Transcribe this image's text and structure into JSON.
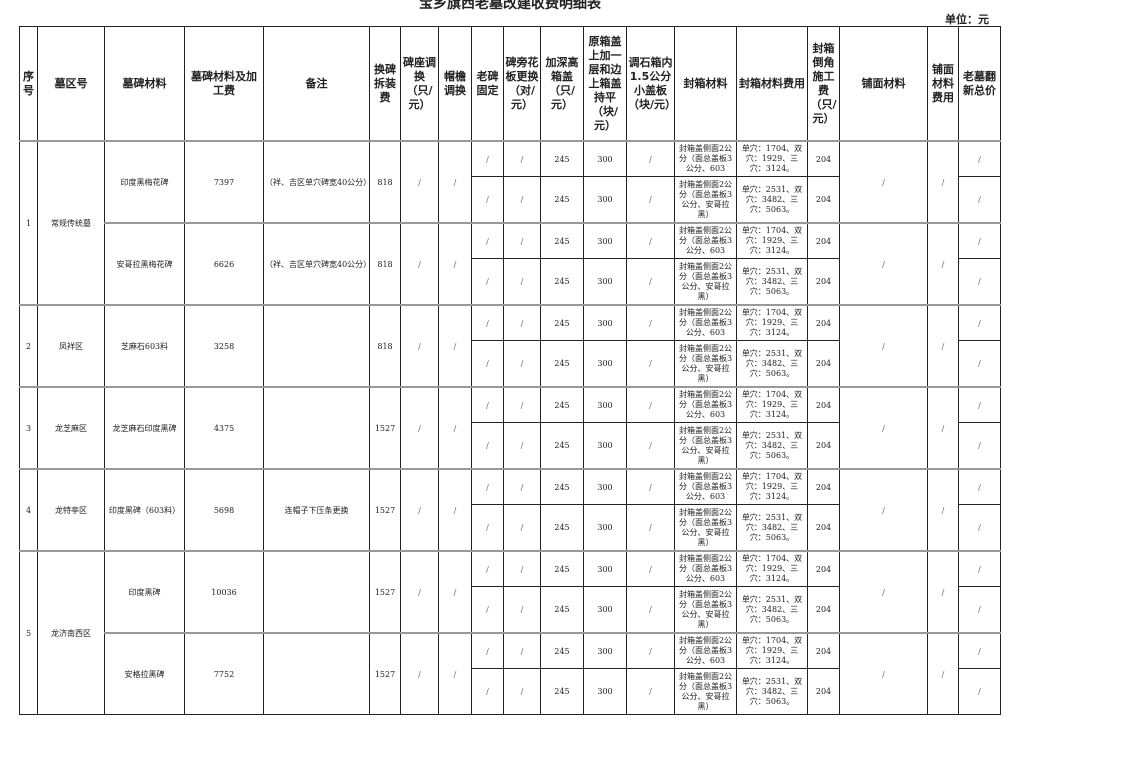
{
  "title": "宝乡旗西老墓改建收费明细表",
  "unit": "单位：元",
  "headers": [
    "序号",
    "墓区号",
    "墓碑材料",
    "墓碑材料及加工费",
    "备注",
    "换碑拆装费",
    "碑座调换（只/元）",
    "帽檐调换",
    "老碑固定",
    "碑旁花板更换（对/元）",
    "加深高箱盖（只/元）",
    "原箱盖上加一层和边上箱盖持平（块/元）",
    "调石箱内1.5公分小盖板（块/元）",
    "封箱材料",
    "封箱材料费用",
    "封箱倒角施工费（只/元）",
    "铺面材料",
    "铺面材料费用",
    "老墓翻新总价"
  ],
  "slash": "/",
  "sub_rows": [
    {
      "old_fix": "/",
      "side_panel": "/",
      "deep_lid": "245",
      "extra_lid": "300",
      "small_lid": "/",
      "seal_material": "封箱盖侧面2公分（面总盖板3公分、603",
      "seal_cost": "单穴：1704、双穴：1929、三穴：3124。",
      "chamfer": "204",
      "total": "/"
    },
    {
      "old_fix": "/",
      "side_panel": "/",
      "deep_lid": "245",
      "extra_lid": "300",
      "small_lid": "/",
      "seal_material": "封箱盖侧面2公分（面总盖板3公分、安哥拉黑）",
      "seal_cost": "单穴：2531、双穴：3482、三穴：5063。",
      "chamfer": "204",
      "total": "/"
    }
  ],
  "zones": [
    {
      "seq": "1",
      "zone": "常规传统墓",
      "items": [
        {
          "material": "印度黑梅花碑",
          "fee": "7397",
          "note": "（祥、吉区单穴碑宽40公分）",
          "replace_fee": "818",
          "base": "/",
          "brim": "/",
          "paving_material": "/",
          "paving_cost": "/"
        },
        {
          "material": "安哥拉黑梅花碑",
          "fee": "6626",
          "note": "（祥、吉区单穴碑宽40公分）",
          "replace_fee": "818",
          "base": "/",
          "brim": "/",
          "paving_material": "/",
          "paving_cost": "/"
        }
      ]
    },
    {
      "seq": "2",
      "zone": "凤祥区",
      "items": [
        {
          "material": "芝麻石603料",
          "fee": "3258",
          "note": "",
          "replace_fee": "818",
          "base": "/",
          "brim": "/",
          "paving_material": "/",
          "paving_cost": "/"
        }
      ]
    },
    {
      "seq": "3",
      "zone": "龙芝麻区",
      "items": [
        {
          "material": "龙芝麻石印度黑碑",
          "fee": "4375",
          "note": "",
          "replace_fee": "1527",
          "base": "/",
          "brim": "/",
          "paving_material": "/",
          "paving_cost": "/"
        }
      ]
    },
    {
      "seq": "4",
      "zone": "龙特亭区",
      "items": [
        {
          "material": "印度黑碑（603料）",
          "fee": "5698",
          "note": "连帽子下压条更换",
          "replace_fee": "1527",
          "base": "/",
          "brim": "/",
          "paving_material": "/",
          "paving_cost": "/"
        }
      ]
    },
    {
      "seq": "5",
      "zone": "龙济南西区",
      "items": [
        {
          "material": "印度黑碑",
          "fee": "10036",
          "note": "",
          "replace_fee": "1527",
          "base": "/",
          "brim": "/",
          "paving_material": "/",
          "paving_cost": "/"
        },
        {
          "material": "安格拉黑碑",
          "fee": "7752",
          "note": "",
          "replace_fee": "1527",
          "base": "/",
          "brim": "/",
          "paving_material": "/",
          "paving_cost": "/"
        }
      ]
    }
  ]
}
